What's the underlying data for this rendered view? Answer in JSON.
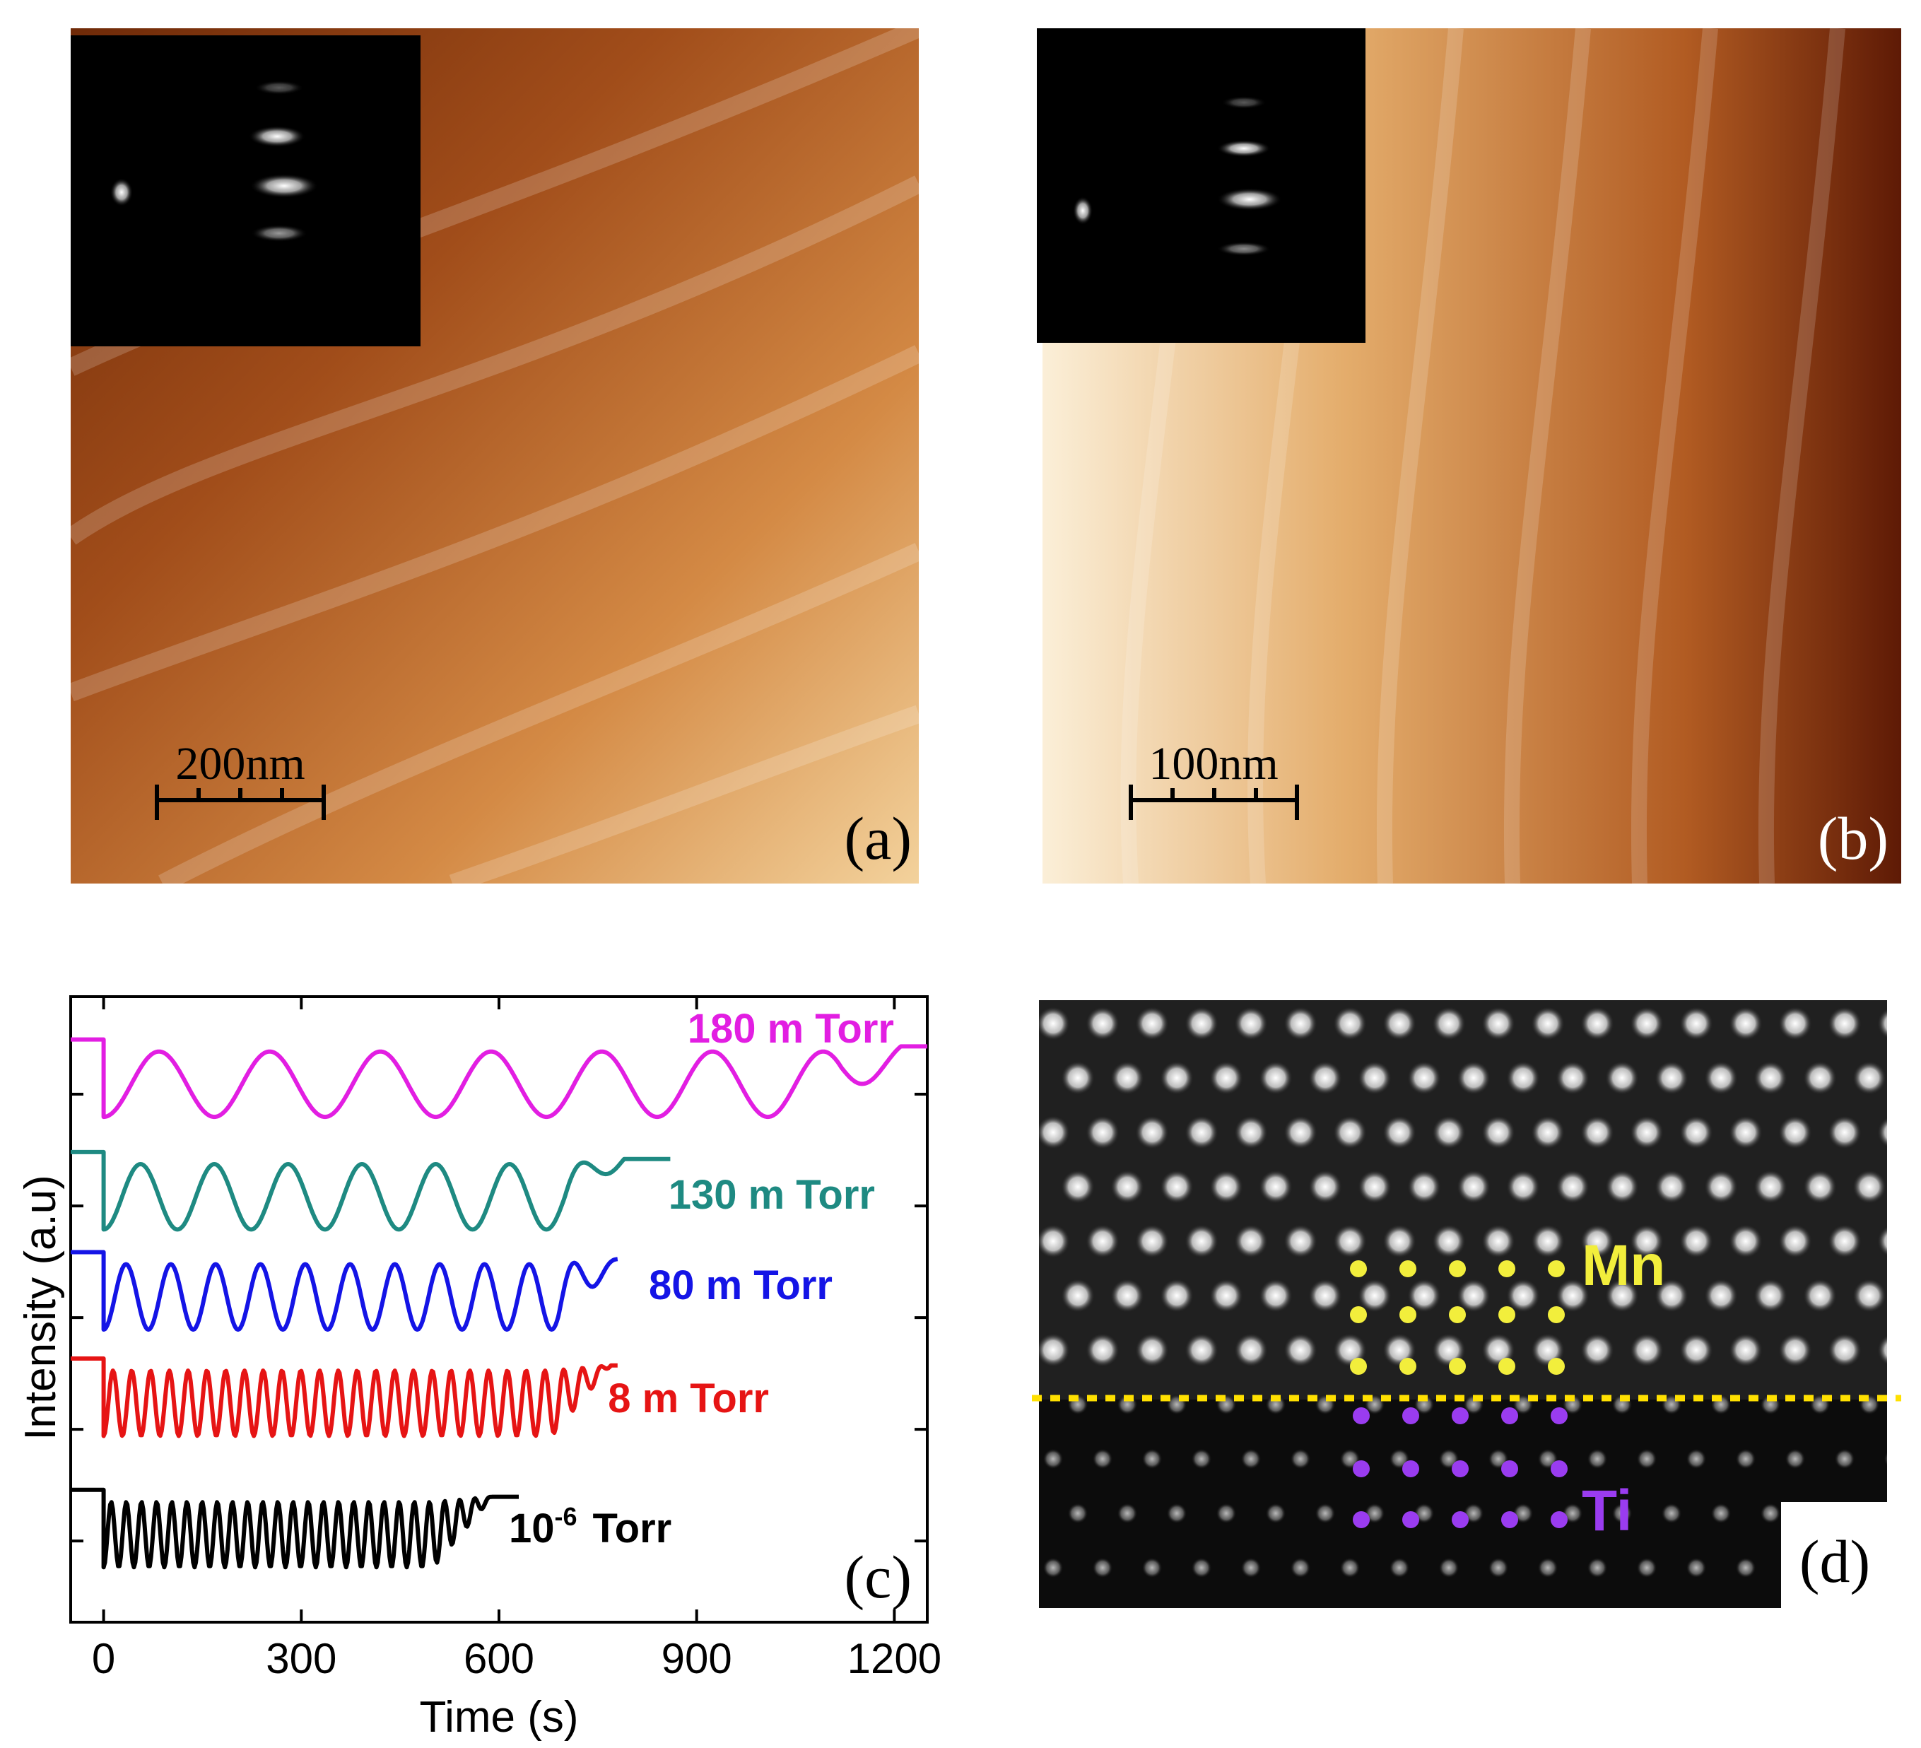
{
  "figure": {
    "panel_a": {
      "letter": "(a)",
      "scale_bar": "200nm"
    },
    "panel_b": {
      "letter": "(b)",
      "scale_bar": "100nm"
    },
    "panel_c": {
      "letter": "(c)"
    },
    "panel_d": {
      "letter": "(d)",
      "label_top": "Mn",
      "label_bottom": "Ti",
      "colors": {
        "mn": "#f2ee3c",
        "ti": "#9a3cf0",
        "interface": "#ffe000"
      }
    }
  },
  "chart_data": {
    "type": "line",
    "xlabel": "Time (s)",
    "ylabel": "Intensity (a.u)",
    "xlim": [
      -50,
      1250
    ],
    "xticks": [
      0,
      300,
      600,
      900,
      1200
    ],
    "ylim": [
      0,
      1
    ],
    "y_ticks_unlabeled": true,
    "series": [
      {
        "name": "180 mTorr",
        "label": "180 m Torr",
        "color": "#e21ee2",
        "offset": 0.86,
        "amplitude": 0.055,
        "period": 168,
        "t_start": 0,
        "t_end": 1250,
        "recover": 1120
      },
      {
        "name": "130 mTorr",
        "label": "130 m Torr",
        "color": "#1e8a82",
        "offset": 0.68,
        "amplitude": 0.055,
        "period": 112,
        "t_start": 0,
        "t_end": 860,
        "recover": 700
      },
      {
        "name": "80 mTorr",
        "label": "80 m Torr",
        "color": "#1414e6",
        "offset": 0.52,
        "amplitude": 0.055,
        "period": 68,
        "t_start": 0,
        "t_end": 780,
        "recover": 690
      },
      {
        "name": "8 mTorr",
        "label": "8 m Torr",
        "color": "#e61414",
        "offset": 0.35,
        "amplitude": 0.055,
        "period": 28.5,
        "t_start": 0,
        "t_end": 780,
        "recover": 680
      },
      {
        "name": "1e-6 Torr",
        "label_base": "10",
        "label_exp": "-6",
        "label_unit": "Torr",
        "color": "#000000",
        "offset": 0.14,
        "amplitude": 0.055,
        "period": 23,
        "t_start": 0,
        "t_end": 630,
        "recover": 500
      }
    ]
  }
}
